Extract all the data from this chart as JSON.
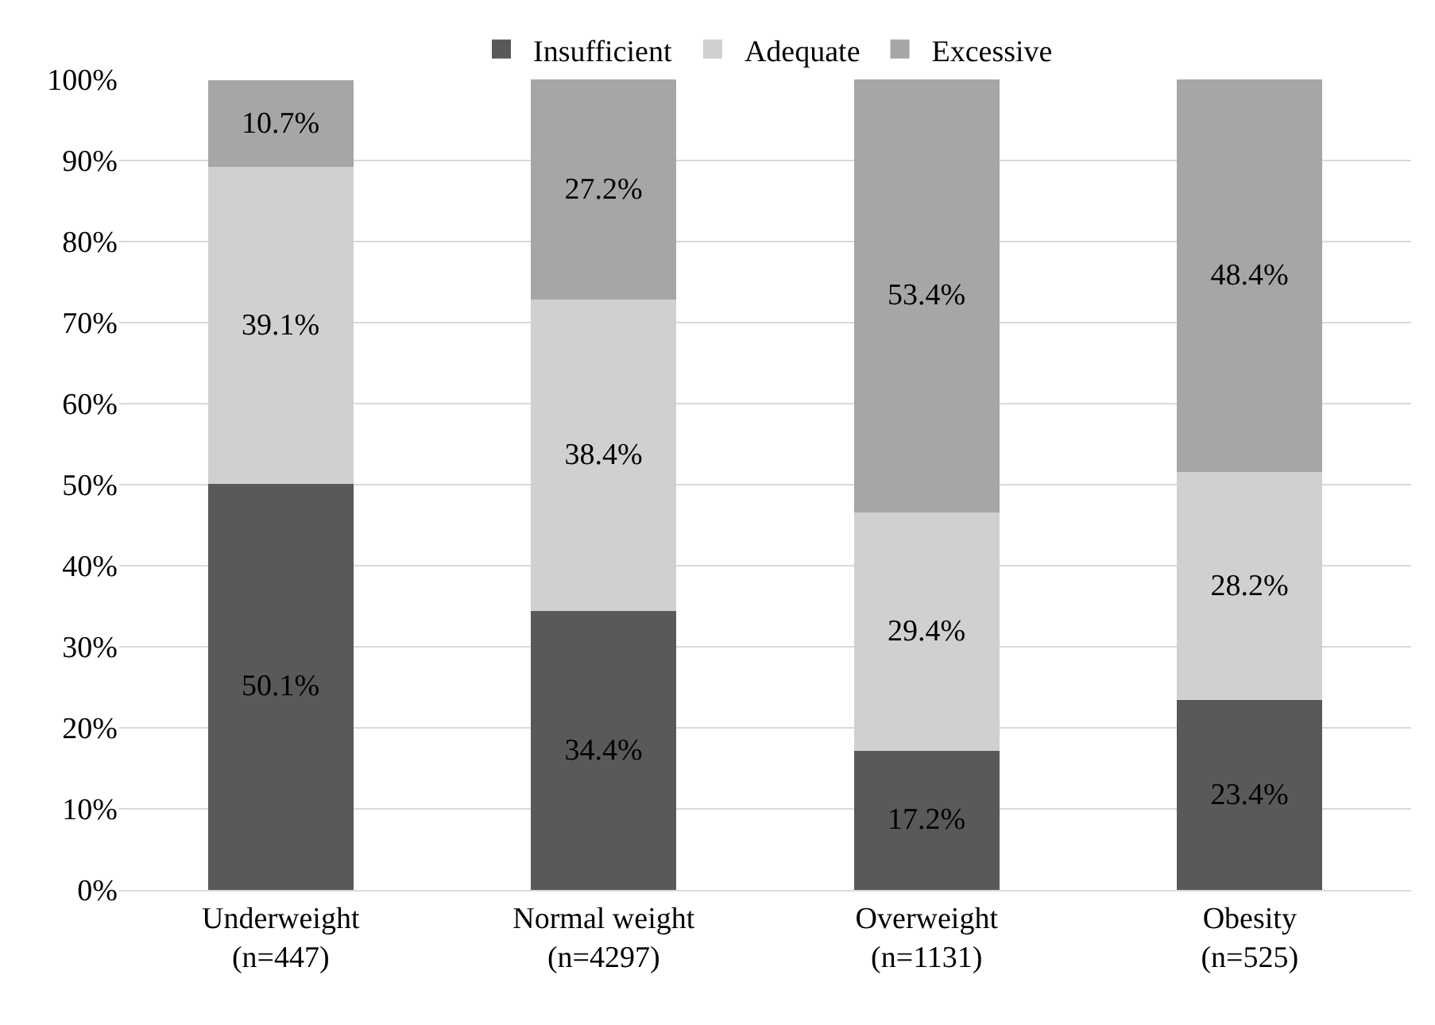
{
  "chart_data": {
    "type": "bar",
    "stacked": true,
    "categories": [
      "Underweight\n(n=447)",
      "Normal weight\n(n=4297)",
      "Overweight\n(n=1131)",
      "Obesity\n(n=525)"
    ],
    "series": [
      {
        "name": "Insufficient",
        "color": "#595959",
        "values": [
          50.1,
          34.4,
          17.2,
          23.4
        ],
        "value_labels": [
          "50.1%",
          "34.4%",
          "17.2%",
          "23.4%"
        ]
      },
      {
        "name": "Adequate",
        "color": "#d0d0d0",
        "values": [
          39.1,
          38.4,
          29.4,
          28.2
        ],
        "value_labels": [
          "39.1%",
          "38.4%",
          "29.4%",
          "28.2%"
        ]
      },
      {
        "name": "Excessive",
        "color": "#a6a6a6",
        "values": [
          10.7,
          27.2,
          53.4,
          48.4
        ],
        "value_labels": [
          "10.7%",
          "27.2%",
          "53.4%",
          "48.4%"
        ]
      }
    ],
    "ylim": [
      0,
      100
    ],
    "yticks": [
      {
        "value": 0,
        "label": "0%"
      },
      {
        "value": 10,
        "label": "10%"
      },
      {
        "value": 20,
        "label": "20%"
      },
      {
        "value": 30,
        "label": "30%"
      },
      {
        "value": 40,
        "label": "40%"
      },
      {
        "value": 50,
        "label": "50%"
      },
      {
        "value": 60,
        "label": "60%"
      },
      {
        "value": 70,
        "label": "70%"
      },
      {
        "value": 80,
        "label": "80%"
      },
      {
        "value": 90,
        "label": "90%"
      },
      {
        "value": 100,
        "label": "100%"
      }
    ],
    "grid": "y",
    "legend": "top"
  }
}
